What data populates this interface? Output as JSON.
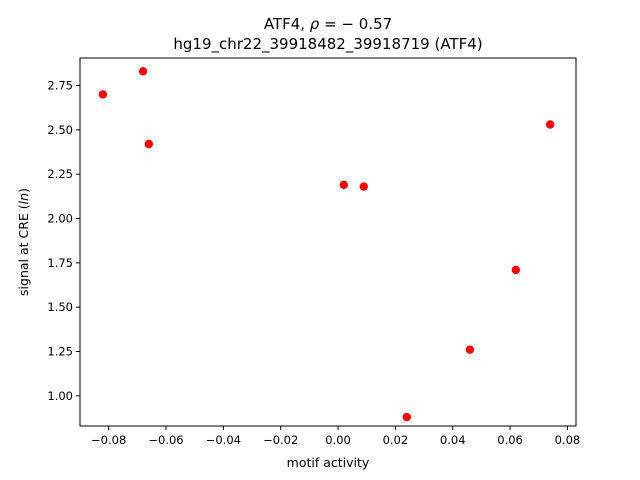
{
  "chart_data": {
    "type": "scatter",
    "title_line1_prefix": "ATF4, ",
    "title_line1_rho": "ρ",
    "title_line1_suffix": " = − 0.57",
    "title_line2": "hg19_chr22_39918482_39918719 (ATF4)",
    "xlabel": "motif activity",
    "ylabel_prefix": "signal at CRE (",
    "ylabel_italic": "ln",
    "ylabel_suffix": ")",
    "xlim": [
      -0.09,
      0.083
    ],
    "ylim": [
      0.83,
      2.905
    ],
    "x_ticks": [
      -0.08,
      -0.06,
      -0.04,
      -0.02,
      0.0,
      0.02,
      0.04,
      0.06,
      0.08
    ],
    "x_tick_labels": [
      "−0.08",
      "−0.06",
      "−0.04",
      "−0.02",
      "0.00",
      "0.02",
      "0.04",
      "0.06",
      "0.08"
    ],
    "y_ticks": [
      1.0,
      1.25,
      1.5,
      1.75,
      2.0,
      2.25,
      2.5,
      2.75
    ],
    "y_tick_labels": [
      "1.00",
      "1.25",
      "1.50",
      "1.75",
      "2.00",
      "2.25",
      "2.50",
      "2.75"
    ],
    "marker_color": "#ff0000",
    "grid": false,
    "points": [
      {
        "x": -0.082,
        "y": 2.7
      },
      {
        "x": -0.068,
        "y": 2.83
      },
      {
        "x": -0.066,
        "y": 2.42
      },
      {
        "x": 0.002,
        "y": 2.19
      },
      {
        "x": 0.009,
        "y": 2.18
      },
      {
        "x": 0.024,
        "y": 0.88
      },
      {
        "x": 0.046,
        "y": 1.26
      },
      {
        "x": 0.062,
        "y": 1.71
      },
      {
        "x": 0.074,
        "y": 2.53
      }
    ]
  }
}
